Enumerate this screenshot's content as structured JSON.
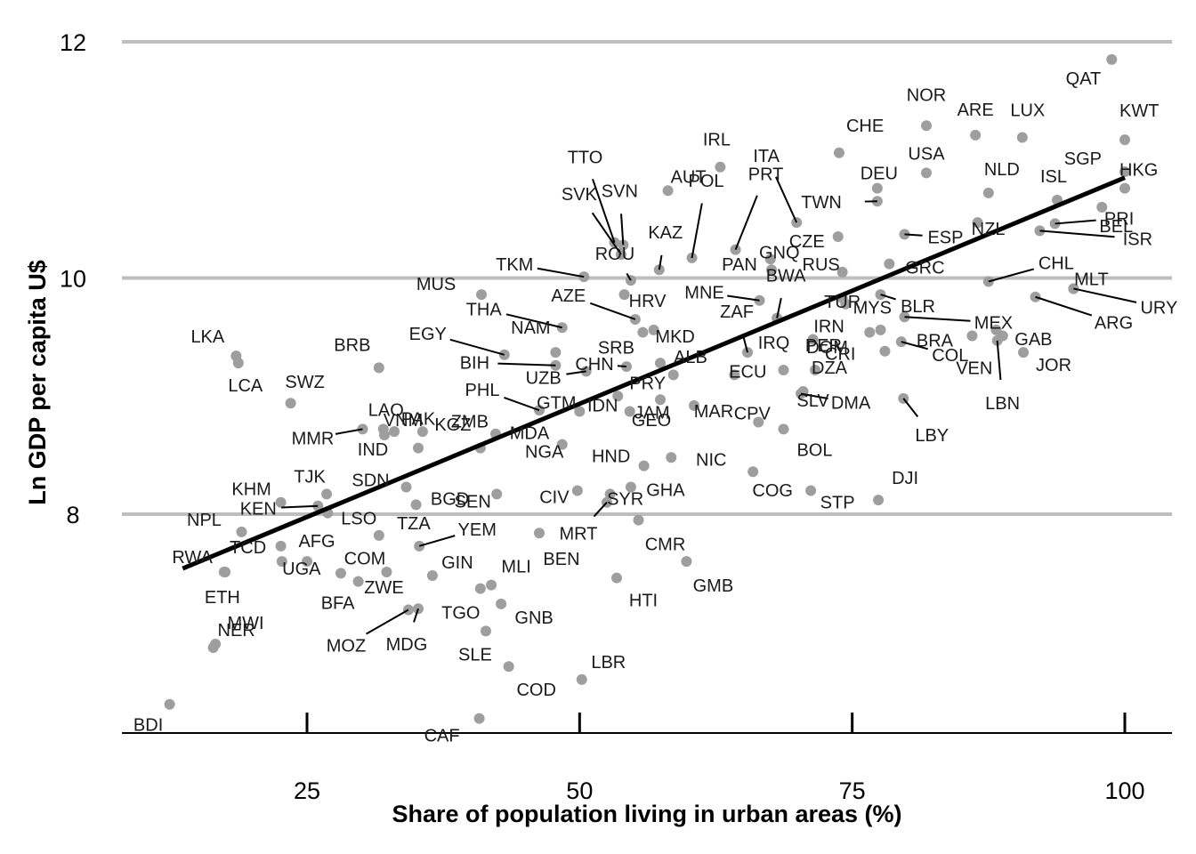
{
  "chart_data": {
    "type": "scatter",
    "title": "",
    "xlabel": "Share of population living in urban areas (%)",
    "ylabel": "Ln GDP per capita U$",
    "xlim": [
      9,
      104
    ],
    "ylim": [
      6.0,
      12.1
    ],
    "x_ticks": [
      25,
      50,
      75,
      100
    ],
    "y_ticks": [
      8,
      10,
      12
    ],
    "grid": "horizontal",
    "point_color": "#9e9e9e",
    "fit_line": {
      "x": [
        13.6,
        100
      ],
      "y": [
        7.54,
        10.85
      ],
      "color": "#000000"
    },
    "points": [
      {
        "label": "QAT",
        "x": 98.8,
        "y": 11.85
      },
      {
        "label": "KWT",
        "x": 100.0,
        "y": 11.17
      },
      {
        "label": "HKG",
        "x": 100.0,
        "y": 10.76
      },
      {
        "label": "NOR",
        "x": 81.8,
        "y": 11.29
      },
      {
        "label": "ARE",
        "x": 86.3,
        "y": 11.21
      },
      {
        "label": "LUX",
        "x": 90.6,
        "y": 11.19
      },
      {
        "label": "SGP",
        "x": 100.0,
        "y": 10.9
      },
      {
        "label": "CHE",
        "x": 73.8,
        "y": 11.06
      },
      {
        "label": "USA",
        "x": 81.8,
        "y": 10.89
      },
      {
        "label": "IRL",
        "x": 62.9,
        "y": 10.94
      },
      {
        "label": "NLD",
        "x": 87.5,
        "y": 10.72
      },
      {
        "label": "ISL",
        "x": 93.8,
        "y": 10.66
      },
      {
        "label": "DEU",
        "x": 77.3,
        "y": 10.76
      },
      {
        "label": "AUT",
        "x": 58.1,
        "y": 10.74
      },
      {
        "label": "BEL",
        "x": 97.9,
        "y": 10.6
      },
      {
        "label": "TWN",
        "x": 77.3,
        "y": 10.65
      },
      {
        "label": "ITA",
        "x": 69.9,
        "y": 10.47
      },
      {
        "label": "CZE",
        "x": 73.7,
        "y": 10.35
      },
      {
        "label": "NZL",
        "x": 86.5,
        "y": 10.47
      },
      {
        "label": "ESP",
        "x": 79.8,
        "y": 10.37
      },
      {
        "label": "PRI",
        "x": 93.6,
        "y": 10.46
      },
      {
        "label": "ISR",
        "x": 92.2,
        "y": 10.4
      },
      {
        "label": "TTO",
        "x": 53.2,
        "y": 10.3
      },
      {
        "label": "SVN",
        "x": 54.0,
        "y": 10.28
      },
      {
        "label": "SVK",
        "x": 53.8,
        "y": 10.2
      },
      {
        "label": "PRT",
        "x": 64.3,
        "y": 10.24
      },
      {
        "label": "POL",
        "x": 60.3,
        "y": 10.17
      },
      {
        "label": "KAZ",
        "x": 57.3,
        "y": 10.07
      },
      {
        "label": "GNQ",
        "x": 67.5,
        "y": 10.16
      },
      {
        "label": "RUS",
        "x": 74.1,
        "y": 10.05
      },
      {
        "label": "GRC",
        "x": 78.4,
        "y": 10.12
      },
      {
        "label": "CHL",
        "x": 87.5,
        "y": 9.97
      },
      {
        "label": "MLT",
        "x": 95.3,
        "y": 9.91
      },
      {
        "label": "URY",
        "x": 95.3,
        "y": 9.91
      },
      {
        "label": "TKM",
        "x": 50.4,
        "y": 10.01
      },
      {
        "label": "ROU",
        "x": 54.7,
        "y": 9.98
      },
      {
        "label": "HRV",
        "x": 54.1,
        "y": 9.86
      },
      {
        "label": "PAN",
        "x": 67.6,
        "y": 10.07
      },
      {
        "label": "MNE",
        "x": 66.5,
        "y": 9.81
      },
      {
        "label": "BWA",
        "x": 68.1,
        "y": 9.66
      },
      {
        "label": "TUR",
        "x": 74.1,
        "y": 9.83
      },
      {
        "label": "MYS",
        "x": 74.4,
        "y": 9.78
      },
      {
        "label": "BLR",
        "x": 77.6,
        "y": 9.86
      },
      {
        "label": "MEX",
        "x": 79.8,
        "y": 9.67
      },
      {
        "label": "ARG",
        "x": 91.8,
        "y": 9.84
      },
      {
        "label": "MUS",
        "x": 41.0,
        "y": 9.86
      },
      {
        "label": "AZE",
        "x": 55.1,
        "y": 9.65
      },
      {
        "label": "MKD",
        "x": 56.8,
        "y": 9.56
      },
      {
        "label": "THA",
        "x": 48.4,
        "y": 9.58
      },
      {
        "label": "SRB",
        "x": 55.8,
        "y": 9.54
      },
      {
        "label": "ZAF",
        "x": 65.4,
        "y": 9.37
      },
      {
        "label": "IRN",
        "x": 71.4,
        "y": 9.48
      },
      {
        "label": "DOM",
        "x": 77.6,
        "y": 9.56
      },
      {
        "label": "CRI",
        "x": 76.6,
        "y": 9.54
      },
      {
        "label": "GAB",
        "x": 88.2,
        "y": 9.56
      },
      {
        "label": "BRA",
        "x": 86.0,
        "y": 9.51
      },
      {
        "label": "VEN",
        "x": 88.8,
        "y": 9.51
      },
      {
        "label": "LBN",
        "x": 88.3,
        "y": 9.47
      },
      {
        "label": "JOR",
        "x": 90.7,
        "y": 9.37
      },
      {
        "label": "LKA",
        "x": 18.5,
        "y": 9.34
      },
      {
        "label": "LCA",
        "x": 18.7,
        "y": 9.28
      },
      {
        "label": "BRB",
        "x": 31.6,
        "y": 9.24
      },
      {
        "label": "EGY",
        "x": 43.1,
        "y": 9.35
      },
      {
        "label": "NAM",
        "x": 47.8,
        "y": 9.37
      },
      {
        "label": "BIH",
        "x": 47.8,
        "y": 9.26
      },
      {
        "label": "CHN",
        "x": 54.3,
        "y": 9.25
      },
      {
        "label": "ALB",
        "x": 57.4,
        "y": 9.28
      },
      {
        "label": "PRY",
        "x": 58.6,
        "y": 9.18
      },
      {
        "label": "ECU",
        "x": 64.2,
        "y": 9.18
      },
      {
        "label": "DZA",
        "x": 71.6,
        "y": 9.22
      },
      {
        "label": "IRQ",
        "x": 68.7,
        "y": 9.22
      },
      {
        "label": "PER",
        "x": 78.0,
        "y": 9.38
      },
      {
        "label": "COL",
        "x": 79.5,
        "y": 9.46
      },
      {
        "label": "UZB",
        "x": 50.6,
        "y": 9.21
      },
      {
        "label": "IDN",
        "x": 53.5,
        "y": 9.0
      },
      {
        "label": "GEO",
        "x": 57.4,
        "y": 8.97
      },
      {
        "label": "DMA",
        "x": 70.3,
        "y": 9.02
      },
      {
        "label": "PHL",
        "x": 46.3,
        "y": 8.88
      },
      {
        "label": "MAR",
        "x": 60.5,
        "y": 8.92
      },
      {
        "label": "LBY",
        "x": 79.7,
        "y": 8.98
      },
      {
        "label": "SLV",
        "x": 70.5,
        "y": 9.04
      },
      {
        "label": "SWZ",
        "x": 23.5,
        "y": 8.94
      },
      {
        "label": "VNM",
        "x": 33.0,
        "y": 8.7
      },
      {
        "label": "LAO",
        "x": 32.0,
        "y": 8.72
      },
      {
        "label": "MMR",
        "x": 30.1,
        "y": 8.72
      },
      {
        "label": "IND",
        "x": 32.1,
        "y": 8.67
      },
      {
        "label": "KGZ",
        "x": 35.6,
        "y": 8.7
      },
      {
        "label": "MDA",
        "x": 42.3,
        "y": 8.68
      },
      {
        "label": "GTM",
        "x": 50.0,
        "y": 8.87
      },
      {
        "label": "JAM",
        "x": 54.6,
        "y": 8.87
      },
      {
        "label": "BOL",
        "x": 68.7,
        "y": 8.72
      },
      {
        "label": "CPV",
        "x": 66.4,
        "y": 8.78
      },
      {
        "label": "NGA",
        "x": 48.4,
        "y": 8.59
      },
      {
        "label": "HND",
        "x": 55.9,
        "y": 8.41
      },
      {
        "label": "NIC",
        "x": 58.4,
        "y": 8.48
      },
      {
        "label": "COG",
        "x": 65.9,
        "y": 8.36
      },
      {
        "label": "DJI",
        "x": 77.4,
        "y": 8.12
      },
      {
        "label": "STP",
        "x": 71.2,
        "y": 8.2
      },
      {
        "label": "KHM",
        "x": 22.6,
        "y": 8.1
      },
      {
        "label": "TJK",
        "x": 26.8,
        "y": 8.17
      },
      {
        "label": "PAK",
        "x": 35.2,
        "y": 8.56
      },
      {
        "label": "ZMB",
        "x": 40.9,
        "y": 8.56
      },
      {
        "label": "SDN",
        "x": 34.1,
        "y": 8.23
      },
      {
        "label": "BGD",
        "x": 35.0,
        "y": 8.08
      },
      {
        "label": "CIV",
        "x": 49.8,
        "y": 8.2
      },
      {
        "label": "GHA",
        "x": 54.7,
        "y": 8.23
      },
      {
        "label": "SEN",
        "x": 42.4,
        "y": 8.17
      },
      {
        "label": "SYR",
        "x": 52.8,
        "y": 8.17
      },
      {
        "label": "LSO",
        "x": 26.9,
        "y": 8.01
      },
      {
        "label": "KEN",
        "x": 26.0,
        "y": 8.07
      },
      {
        "label": "NPL",
        "x": 19.0,
        "y": 7.85
      },
      {
        "label": "TCD",
        "x": 22.6,
        "y": 7.73
      },
      {
        "label": "AFG",
        "x": 25.0,
        "y": 7.6
      },
      {
        "label": "TZA",
        "x": 31.6,
        "y": 7.82
      },
      {
        "label": "YEM",
        "x": 35.3,
        "y": 7.73
      },
      {
        "label": "MRT",
        "x": 52.5,
        "y": 8.1
      },
      {
        "label": "CMR",
        "x": 55.4,
        "y": 7.95
      },
      {
        "label": "RWA",
        "x": 17.5,
        "y": 7.51
      },
      {
        "label": "ETH",
        "x": 17.4,
        "y": 7.51
      },
      {
        "label": "UGA",
        "x": 22.7,
        "y": 7.6
      },
      {
        "label": "COM",
        "x": 28.1,
        "y": 7.5
      },
      {
        "label": "GIN",
        "x": 36.5,
        "y": 7.48
      },
      {
        "label": "MLI",
        "x": 41.9,
        "y": 7.4
      },
      {
        "label": "BEN",
        "x": 46.3,
        "y": 7.84
      },
      {
        "label": "GMB",
        "x": 59.8,
        "y": 7.6
      },
      {
        "label": "HTI",
        "x": 53.4,
        "y": 7.46
      },
      {
        "label": "BFA",
        "x": 29.7,
        "y": 7.43
      },
      {
        "label": "ZWE",
        "x": 32.3,
        "y": 7.51
      },
      {
        "label": "MWI",
        "x": 16.6,
        "y": 6.9
      },
      {
        "label": "MOZ",
        "x": 34.3,
        "y": 7.19
      },
      {
        "label": "MDG",
        "x": 35.2,
        "y": 7.2
      },
      {
        "label": "TGO",
        "x": 40.9,
        "y": 7.37
      },
      {
        "label": "GNB",
        "x": 42.8,
        "y": 7.24
      },
      {
        "label": "NER",
        "x": 16.4,
        "y": 6.87
      },
      {
        "label": "SLE",
        "x": 41.4,
        "y": 7.01
      },
      {
        "label": "LBR",
        "x": 50.2,
        "y": 6.6
      },
      {
        "label": "COD",
        "x": 43.5,
        "y": 6.71
      },
      {
        "label": "BDI",
        "x": 12.4,
        "y": 6.39
      },
      {
        "label": "CAF",
        "x": 40.8,
        "y": 6.27
      }
    ]
  }
}
